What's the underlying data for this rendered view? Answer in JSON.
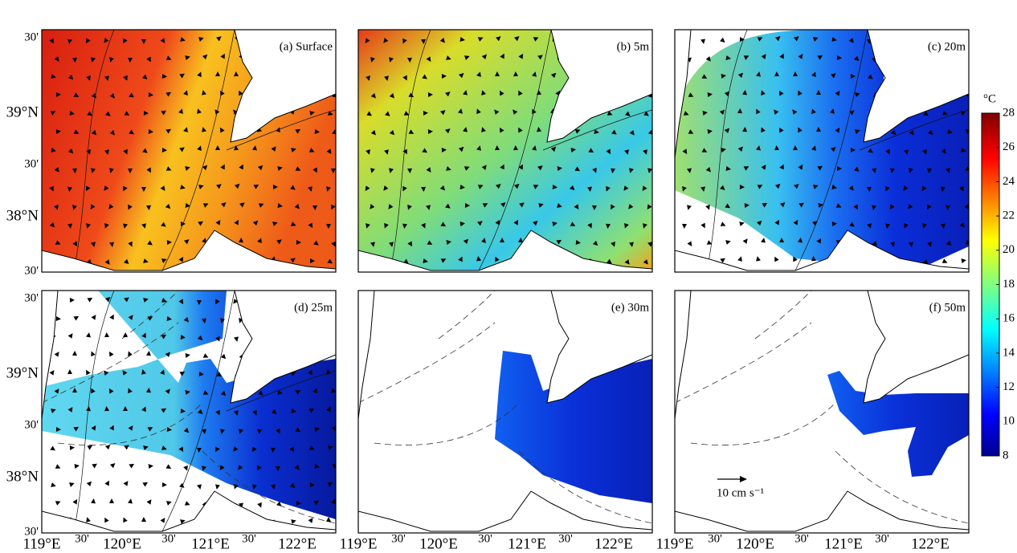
{
  "panels": [
    {
      "label": "(a) Surface"
    },
    {
      "label": "(b) 5m"
    },
    {
      "label": "(c) 20m"
    },
    {
      "label": "(d) 25m"
    },
    {
      "label": "(e) 30m"
    },
    {
      "label": "(f) 50m"
    }
  ],
  "lat_labels": [
    "30'",
    "39°N",
    "30'",
    "38°N",
    "30'"
  ],
  "lon_labels": [
    "119°E",
    "30'",
    "120°E",
    "30'",
    "121°E",
    "30'",
    "122°E"
  ],
  "colorbar": {
    "unit": "°C",
    "lim": [
      8,
      28
    ],
    "ticks": [
      8,
      10,
      12,
      14,
      16,
      18,
      20,
      22,
      24,
      26,
      28
    ]
  },
  "scale_label": "10 cm s⁻¹"
}
